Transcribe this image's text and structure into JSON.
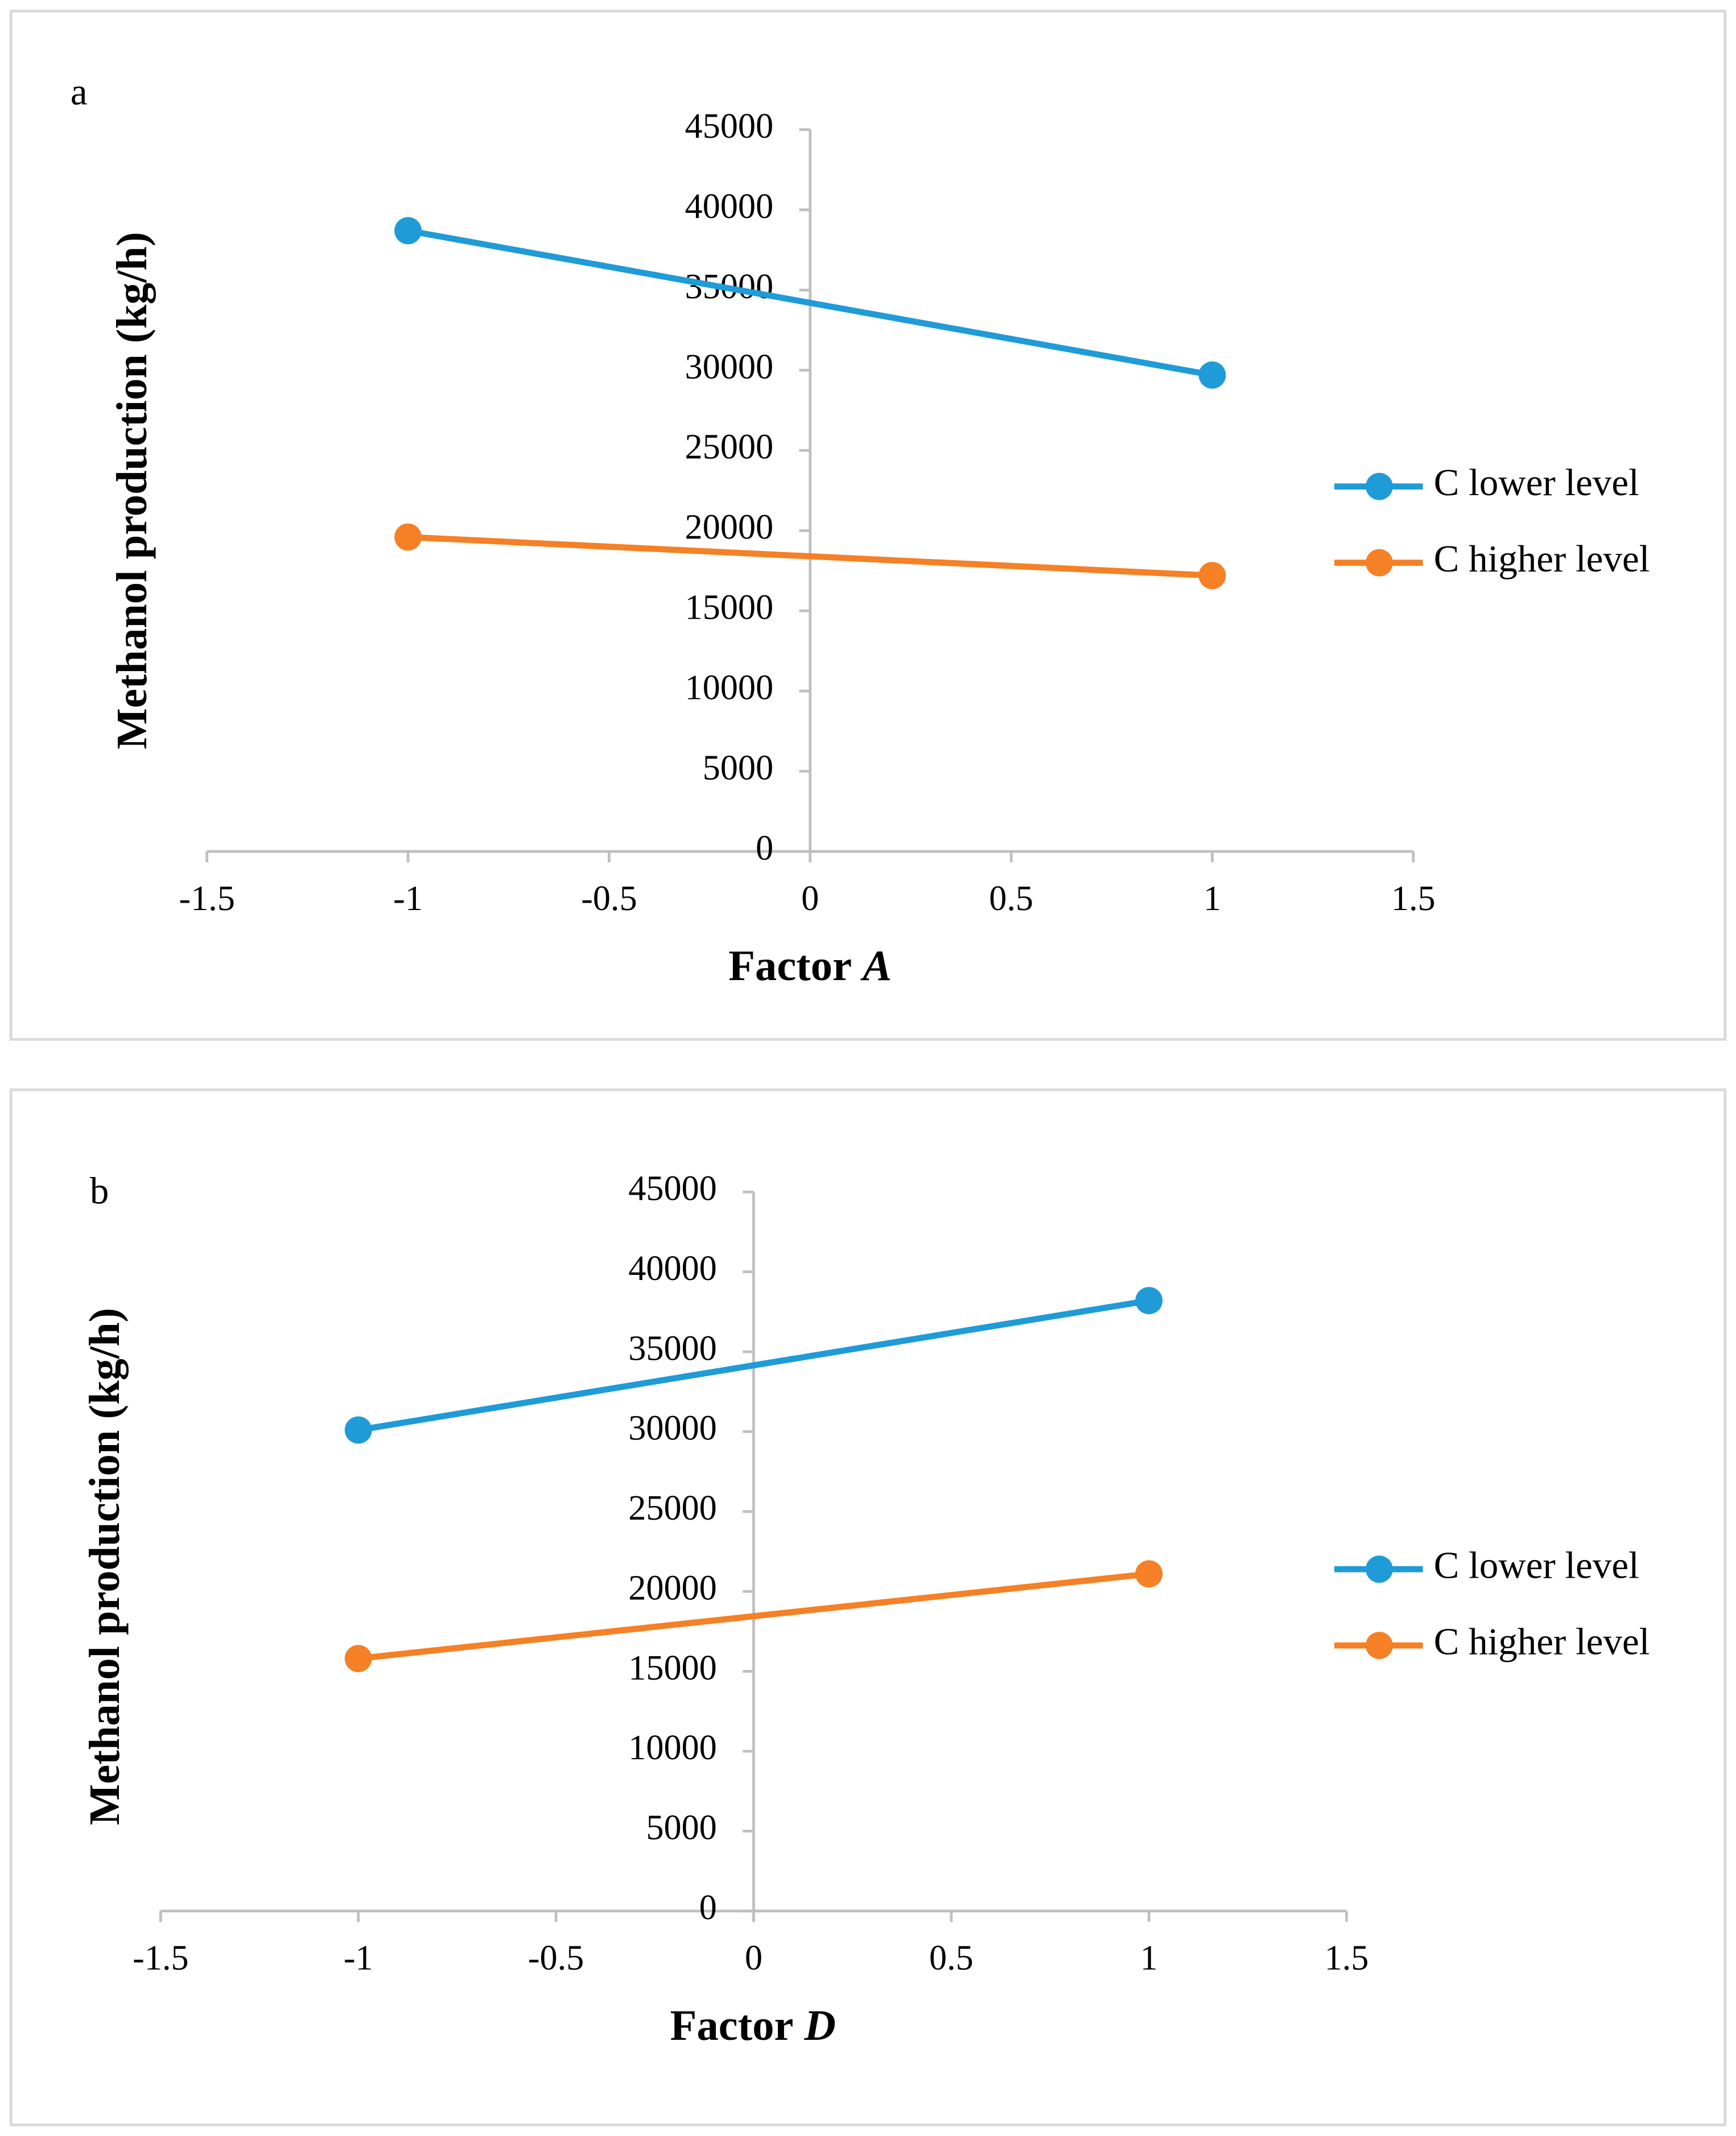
{
  "chart_data": [
    {
      "type": "line",
      "panel_label": "a",
      "xlabel": "Factor",
      "xlabel_italic": "A",
      "ylabel": "Methanol production (kg/h)",
      "x": [
        -1,
        1
      ],
      "series": [
        {
          "name": "C lower level",
          "color": "#1f9bd7",
          "values": [
            38700,
            29700
          ]
        },
        {
          "name": "C higher level",
          "color": "#f58025",
          "values": [
            19600,
            17200
          ]
        }
      ],
      "xlim": [
        -1.5,
        1.5
      ],
      "xticks": [
        -1.5,
        -1,
        -0.5,
        0,
        0.5,
        1,
        1.5
      ],
      "ylim": [
        0,
        45000
      ],
      "yticks": [
        0,
        5000,
        10000,
        15000,
        20000,
        25000,
        30000,
        35000,
        40000,
        45000
      ],
      "legend": "right",
      "grid": false
    },
    {
      "type": "line",
      "panel_label": "b",
      "xlabel": "Factor",
      "xlabel_italic": "D",
      "ylabel": "Methanol production (kg/h)",
      "x": [
        -1,
        1
      ],
      "series": [
        {
          "name": "C lower level",
          "color": "#1f9bd7",
          "values": [
            30100,
            38200
          ]
        },
        {
          "name": "C higher level",
          "color": "#f58025",
          "values": [
            15800,
            21100
          ]
        }
      ],
      "xlim": [
        -1.5,
        1.5
      ],
      "xticks": [
        -1.5,
        -1,
        -0.5,
        0,
        0.5,
        1,
        1.5
      ],
      "ylim": [
        0,
        45000
      ],
      "yticks": [
        0,
        5000,
        10000,
        15000,
        20000,
        25000,
        30000,
        35000,
        40000,
        45000
      ],
      "legend": "right",
      "grid": false
    }
  ]
}
